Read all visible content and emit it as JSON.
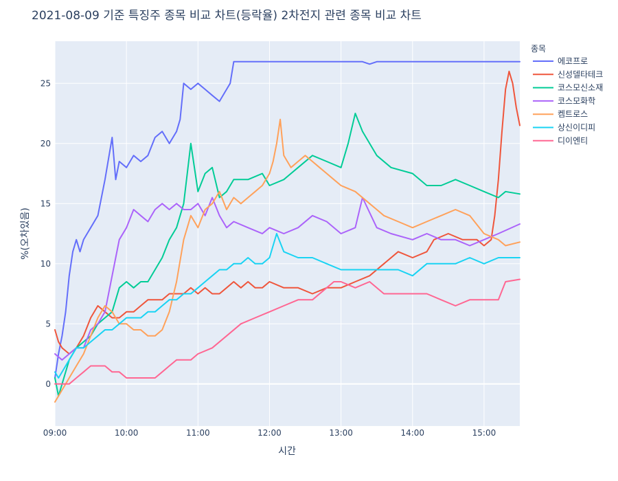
{
  "chart_data": {
    "type": "line",
    "title": "2021-08-09 기준 특징주 종목 비교 차트(등락율) 2차전지 관련 종목 비교 차트",
    "xlabel": "시간",
    "ylabel": "%(오차있음)",
    "x_tick_labels": [
      "09:00",
      "10:00",
      "11:00",
      "12:00",
      "13:00",
      "14:00",
      "15:00"
    ],
    "x_range_hours": [
      9.0,
      15.5
    ],
    "y_tick_labels": [
      "0",
      "5",
      "10",
      "15",
      "20",
      "25"
    ],
    "ylim": [
      -3.5,
      28.5
    ],
    "grid": true,
    "legend_title": "종목",
    "legend_position": "right",
    "series": [
      {
        "name": "에코프로",
        "color": "#636efa",
        "t": [
          9.0,
          9.05,
          9.1,
          9.15,
          9.2,
          9.25,
          9.3,
          9.35,
          9.4,
          9.45,
          9.5,
          9.6,
          9.7,
          9.8,
          9.85,
          9.9,
          10.0,
          10.1,
          10.2,
          10.3,
          10.4,
          10.5,
          10.6,
          10.7,
          10.75,
          10.8,
          10.9,
          11.0,
          11.1,
          11.2,
          11.3,
          11.4,
          11.45,
          11.5,
          12.0,
          13.0,
          13.3,
          13.4,
          13.5,
          14.0,
          15.0,
          15.5
        ],
        "v": [
          0.5,
          2.5,
          4,
          6,
          9,
          11,
          12,
          11,
          12,
          12.5,
          13,
          14,
          17,
          20.5,
          17,
          18.5,
          18,
          19,
          18.5,
          19,
          20.5,
          21,
          20,
          21,
          22,
          25,
          24.5,
          25,
          24.5,
          24,
          23.5,
          24.5,
          25,
          26.8,
          26.8,
          26.8,
          26.8,
          26.6,
          26.8,
          26.8,
          26.8,
          26.8
        ]
      },
      {
        "name": "신성델타테크",
        "color": "#ef553b",
        "t": [
          9.0,
          9.05,
          9.1,
          9.2,
          9.3,
          9.4,
          9.5,
          9.6,
          9.7,
          9.8,
          9.9,
          10.0,
          10.1,
          10.2,
          10.3,
          10.4,
          10.5,
          10.6,
          10.7,
          10.8,
          10.9,
          11.0,
          11.1,
          11.2,
          11.3,
          11.4,
          11.5,
          11.6,
          11.7,
          11.8,
          11.9,
          12.0,
          12.2,
          12.4,
          12.6,
          12.8,
          13.0,
          13.2,
          13.4,
          13.6,
          13.8,
          14.0,
          14.2,
          14.3,
          14.5,
          14.7,
          14.9,
          15.0,
          15.1,
          15.15,
          15.2,
          15.25,
          15.3,
          15.35,
          15.4,
          15.45,
          15.5
        ],
        "v": [
          4.5,
          3.5,
          3,
          2.5,
          3,
          4,
          5.5,
          6.5,
          6,
          5.5,
          5.5,
          6,
          6,
          6.5,
          7,
          7,
          7,
          7.5,
          7.5,
          7.5,
          8,
          7.5,
          8,
          7.5,
          7.5,
          8,
          8.5,
          8,
          8.5,
          8,
          8,
          8.5,
          8,
          8,
          7.5,
          8,
          8,
          8.5,
          9,
          10,
          11,
          10.5,
          11,
          12,
          12.5,
          12,
          12,
          11.5,
          12,
          14,
          17,
          21,
          24.5,
          26,
          25,
          23,
          21.5
        ]
      },
      {
        "name": "코스모신소재",
        "color": "#00cc96",
        "t": [
          9.0,
          9.05,
          9.1,
          9.2,
          9.3,
          9.4,
          9.5,
          9.6,
          9.7,
          9.8,
          9.9,
          10.0,
          10.1,
          10.2,
          10.3,
          10.4,
          10.5,
          10.6,
          10.7,
          10.8,
          10.9,
          11.0,
          11.1,
          11.2,
          11.3,
          11.4,
          11.5,
          11.7,
          11.9,
          12.0,
          12.2,
          12.4,
          12.6,
          12.8,
          13.0,
          13.1,
          13.2,
          13.3,
          13.5,
          13.7,
          14.0,
          14.2,
          14.4,
          14.6,
          14.8,
          15.0,
          15.2,
          15.3,
          15.5
        ],
        "v": [
          0.5,
          -1,
          0,
          2,
          3,
          3.5,
          4,
          5,
          5.5,
          6,
          8,
          8.5,
          8,
          8.5,
          8.5,
          9.5,
          10.5,
          12,
          13,
          15,
          20,
          16,
          17.5,
          18,
          15.5,
          16,
          17,
          17,
          17.5,
          16.5,
          17,
          18,
          19,
          18.5,
          18,
          20,
          22.5,
          21,
          19,
          18,
          17.5,
          16.5,
          16.5,
          17,
          16.5,
          16,
          15.5,
          16,
          15.8
        ]
      },
      {
        "name": "코스모화학",
        "color": "#ab63fa",
        "t": [
          9.0,
          9.1,
          9.2,
          9.3,
          9.4,
          9.5,
          9.6,
          9.7,
          9.8,
          9.85,
          9.9,
          10.0,
          10.1,
          10.2,
          10.3,
          10.4,
          10.5,
          10.6,
          10.7,
          10.8,
          10.9,
          11.0,
          11.1,
          11.2,
          11.3,
          11.4,
          11.5,
          11.7,
          11.9,
          12.0,
          12.2,
          12.4,
          12.6,
          12.8,
          13.0,
          13.2,
          13.3,
          13.5,
          13.7,
          14.0,
          14.2,
          14.4,
          14.6,
          14.8,
          15.0,
          15.2,
          15.5
        ],
        "v": [
          2.5,
          2,
          2.5,
          3,
          3,
          4.5,
          5,
          6,
          9,
          10.5,
          12,
          13,
          14.5,
          14,
          13.5,
          14.5,
          15,
          14.5,
          15,
          14.5,
          14.5,
          15,
          14,
          15.5,
          14,
          13,
          13.5,
          13,
          12.5,
          13,
          12.5,
          13,
          14,
          13.5,
          12.5,
          13,
          15.5,
          13,
          12.5,
          12,
          12.5,
          12,
          12,
          11.5,
          12,
          12.5,
          13.3
        ]
      },
      {
        "name": "켐트로스",
        "color": "#ffa15a",
        "t": [
          9.0,
          9.05,
          9.1,
          9.15,
          9.2,
          9.3,
          9.4,
          9.5,
          9.6,
          9.7,
          9.8,
          9.9,
          10.0,
          10.1,
          10.2,
          10.3,
          10.4,
          10.5,
          10.6,
          10.7,
          10.8,
          10.9,
          11.0,
          11.1,
          11.2,
          11.3,
          11.4,
          11.5,
          11.6,
          11.7,
          11.8,
          11.9,
          12.0,
          12.05,
          12.1,
          12.15,
          12.2,
          12.3,
          12.4,
          12.5,
          12.6,
          12.7,
          12.8,
          12.9,
          13.0,
          13.2,
          13.4,
          13.5,
          13.6,
          13.8,
          14.0,
          14.2,
          14.4,
          14.6,
          14.8,
          15.0,
          15.2,
          15.3,
          15.5
        ],
        "v": [
          -1.5,
          -1,
          -0.5,
          0,
          0.5,
          1.5,
          2.5,
          4,
          5.5,
          6.5,
          6,
          5,
          5,
          4.5,
          4.5,
          4,
          4,
          4.5,
          6,
          8.5,
          12,
          14,
          13,
          14.5,
          15,
          16,
          14.5,
          15.5,
          15,
          15.5,
          16,
          16.5,
          17.5,
          18.5,
          20,
          22,
          19,
          18,
          18.5,
          19,
          18.5,
          18,
          17.5,
          17,
          16.5,
          16,
          15,
          14.5,
          14,
          13.5,
          13,
          13.5,
          14,
          14.5,
          14,
          12.5,
          12,
          11.5,
          11.8
        ]
      },
      {
        "name": "상신이디피",
        "color": "#19d3f3",
        "t": [
          9.0,
          9.05,
          9.1,
          9.2,
          9.3,
          9.4,
          9.5,
          9.6,
          9.7,
          9.8,
          9.9,
          10.0,
          10.1,
          10.2,
          10.3,
          10.4,
          10.5,
          10.6,
          10.7,
          10.8,
          10.9,
          11.0,
          11.1,
          11.2,
          11.3,
          11.4,
          11.5,
          11.6,
          11.7,
          11.8,
          11.9,
          12.0,
          12.1,
          12.2,
          12.4,
          12.6,
          12.8,
          13.0,
          13.2,
          13.4,
          13.6,
          13.8,
          14.0,
          14.2,
          14.4,
          14.6,
          14.8,
          15.0,
          15.2,
          15.3,
          15.5
        ],
        "v": [
          1,
          0.5,
          1,
          2,
          3,
          3,
          3.5,
          4,
          4.5,
          4.5,
          5,
          5.5,
          5.5,
          5.5,
          6,
          6,
          6.5,
          7,
          7,
          7.5,
          7.5,
          8,
          8.5,
          9,
          9.5,
          9.5,
          10,
          10,
          10.5,
          10,
          10,
          10.5,
          12.5,
          11,
          10.5,
          10.5,
          10,
          9.5,
          9.5,
          9.5,
          9.5,
          9.5,
          9,
          10,
          10,
          10,
          10.5,
          10,
          10.5,
          10.5,
          10.5
        ]
      },
      {
        "name": "디이엔티",
        "color": "#ff6692",
        "t": [
          9.0,
          9.2,
          9.3,
          9.4,
          9.5,
          9.6,
          9.7,
          9.8,
          9.9,
          10.0,
          10.1,
          10.2,
          10.3,
          10.4,
          10.5,
          10.6,
          10.7,
          10.8,
          10.9,
          11.0,
          11.2,
          11.4,
          11.6,
          11.8,
          12.0,
          12.2,
          12.4,
          12.6,
          12.8,
          12.9,
          13.0,
          13.2,
          13.4,
          13.6,
          13.8,
          14.0,
          14.2,
          14.4,
          14.6,
          14.8,
          15.0,
          15.1,
          15.2,
          15.3,
          15.5
        ],
        "v": [
          0,
          0,
          0.5,
          1,
          1.5,
          1.5,
          1.5,
          1,
          1,
          0.5,
          0.5,
          0.5,
          0.5,
          0.5,
          1,
          1.5,
          2,
          2,
          2,
          2.5,
          3,
          4,
          5,
          5.5,
          6,
          6.5,
          7,
          7,
          8,
          8.5,
          8.5,
          8,
          8.5,
          7.5,
          7.5,
          7.5,
          7.5,
          7,
          6.5,
          7,
          7,
          7,
          7,
          8.5,
          8.7
        ]
      }
    ]
  }
}
